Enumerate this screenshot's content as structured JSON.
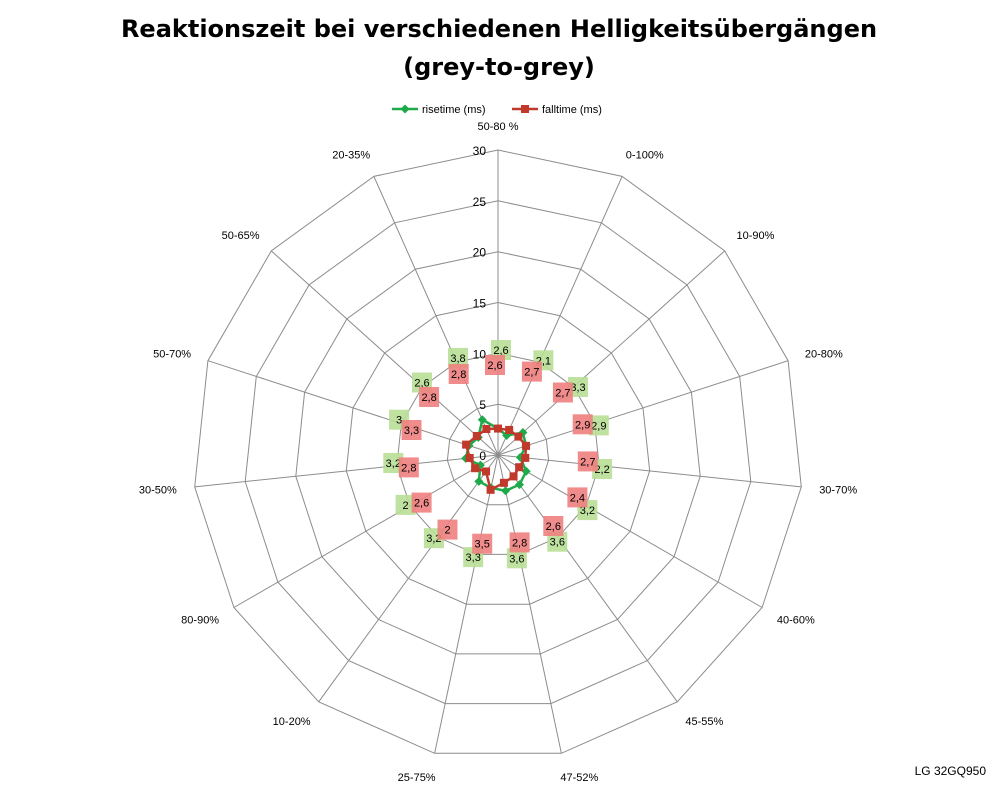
{
  "chart_data": {
    "type": "radar",
    "title_lines": [
      "Reaktionszeit bei verschiedenen Helligkeitsübergängen",
      "(grey-to-grey)"
    ],
    "categories": [
      "50-80 %",
      "0-100%",
      "10-90%",
      "20-80%",
      "30-70%",
      "40-60%",
      "45-55%",
      "47-52%",
      "25-75%",
      "10-20%",
      "80-90%",
      "30-50%",
      "50-70%",
      "50-65%",
      "20-35%"
    ],
    "rlim": [
      0,
      30
    ],
    "r_ticks": [
      0,
      5,
      10,
      15,
      20,
      25,
      30
    ],
    "r_tick_labels": [
      "0",
      "5",
      "10",
      "15",
      "20",
      "25",
      "30"
    ],
    "grid": true,
    "legend_position": "top",
    "series": [
      {
        "name": "risetime (ms)",
        "color": "#1faa4a",
        "label_bg": "#b9df96",
        "marker": "diamond",
        "values": [
          2.6,
          2.1,
          3.3,
          2.9,
          2.2,
          3.2,
          3.6,
          3.6,
          3.3,
          3.2,
          2.0,
          3.2,
          3.0,
          2.6,
          3.8
        ],
        "labels": [
          "2,6",
          "2,1",
          "3,3",
          "2,9",
          "2,2",
          "3,2",
          "3,6",
          "3,6",
          "3,3",
          "3,2",
          "2",
          "3,2",
          "3",
          "2,6",
          "3,8"
        ]
      },
      {
        "name": "falltime (ms)",
        "color": "#c0392b",
        "label_bg": "#f08080",
        "marker": "square",
        "values": [
          2.6,
          2.7,
          2.7,
          2.9,
          2.7,
          2.4,
          2.6,
          2.8,
          3.5,
          2.0,
          2.6,
          2.8,
          3.3,
          2.8,
          2.8
        ],
        "labels": [
          "2,6",
          "2,7",
          "2,7",
          "2,9",
          "2,7",
          "2,4",
          "2,6",
          "2,8",
          "3,5",
          "2",
          "2,6",
          "2,8",
          "3,3",
          "2,8",
          "2,8"
        ]
      }
    ]
  },
  "watermark": "LG 32GQ950"
}
